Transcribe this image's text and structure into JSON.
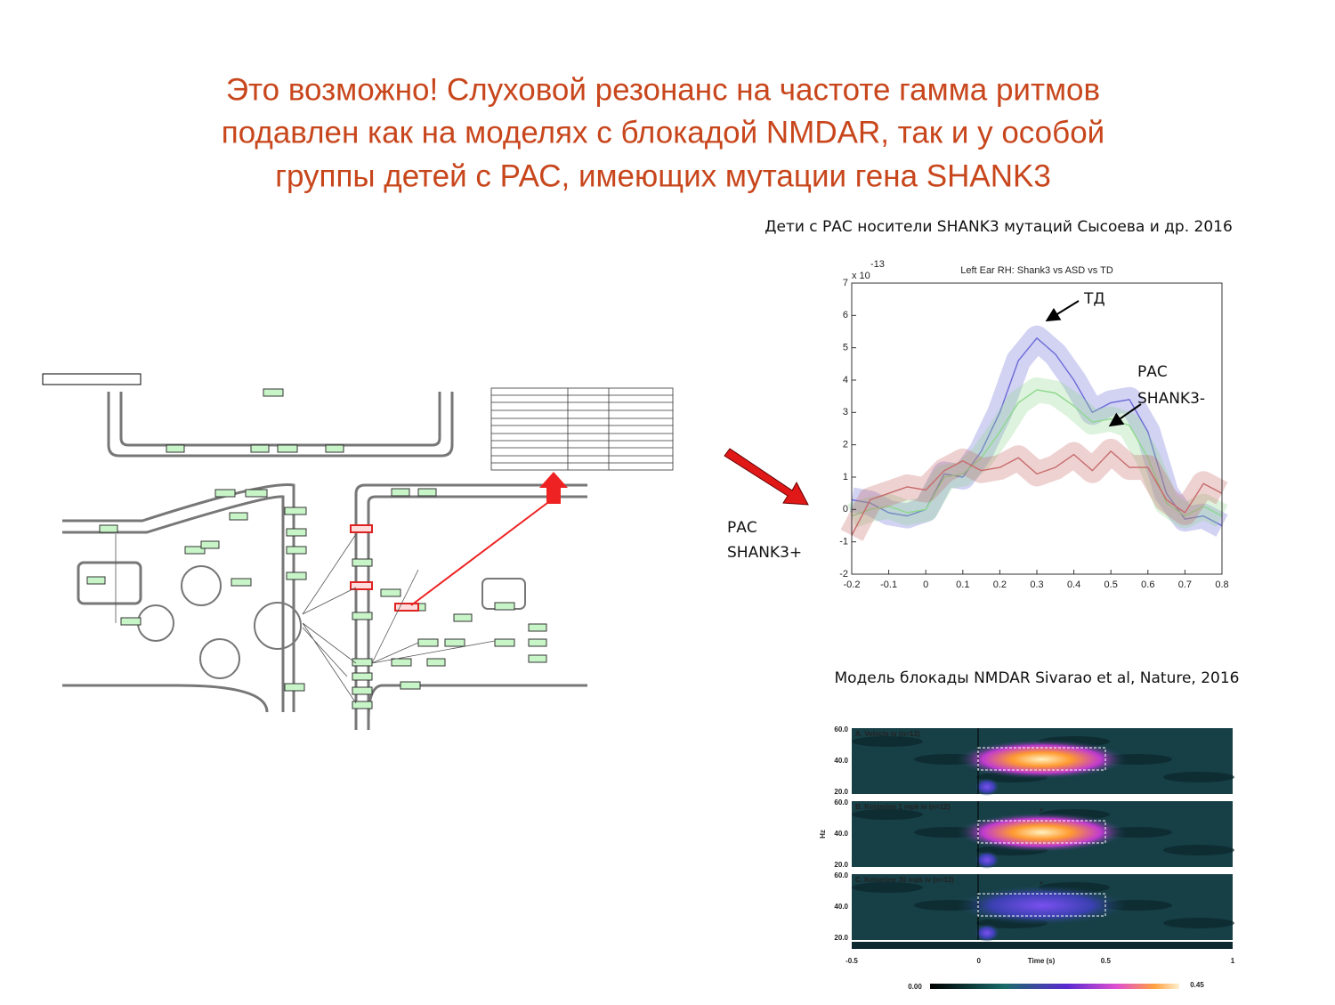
{
  "title": [
    "Это возможно! Слуховой резонанс на частоте гамма ритмов",
    "подавлен как на моделях с блокадой NMDAR, так и у особой",
    "группы детей с РАС, имеющих мутации гена SHANK3"
  ],
  "caption_top": "Дети с РАС носители SHANK3 мутаций  Сысоева и др. 2016",
  "chart_data": {
    "type": "line",
    "title": "Left Ear RH: Shank3 vs ASD vs TD",
    "y_scale_label": "x 10",
    "y_scale_exponent": "-13",
    "x": [
      -0.2,
      -0.15,
      -0.1,
      -0.05,
      0,
      0.05,
      0.1,
      0.15,
      0.2,
      0.25,
      0.3,
      0.35,
      0.4,
      0.45,
      0.5,
      0.55,
      0.6,
      0.65,
      0.7,
      0.75,
      0.8
    ],
    "series": [
      {
        "color": "#6a6ad8",
        "values": [
          0.3,
          0.2,
          -0.1,
          -0.2,
          0.0,
          1.1,
          1.0,
          1.8,
          3.0,
          4.6,
          5.3,
          4.8,
          4.0,
          3.0,
          3.3,
          3.4,
          2.4,
          0.5,
          -0.3,
          -0.2,
          -0.5
        ]
      },
      {
        "color": "#8fd88f",
        "values": [
          -0.2,
          0.0,
          0.1,
          -0.1,
          0.0,
          1.0,
          1.1,
          1.6,
          2.4,
          3.3,
          3.7,
          3.6,
          3.2,
          2.7,
          2.8,
          2.6,
          1.6,
          0.2,
          -0.2,
          0.1,
          -0.2
        ]
      },
      {
        "color": "#c86a6a",
        "values": [
          -0.8,
          0.3,
          0.5,
          0.7,
          0.6,
          1.2,
          1.5,
          1.2,
          1.3,
          1.6,
          1.1,
          1.3,
          1.7,
          1.2,
          1.8,
          1.3,
          1.3,
          0.3,
          -0.1,
          0.8,
          0.5
        ]
      }
    ],
    "xlim": [
      -0.2,
      0.8
    ],
    "xticks": [
      -0.2,
      -0.1,
      0,
      0.1,
      0.2,
      0.3,
      0.4,
      0.5,
      0.6,
      0.7,
      0.8
    ],
    "ylim": [
      -2,
      7
    ],
    "yticks": [
      -2,
      -1,
      0,
      1,
      2,
      3,
      4,
      5,
      6,
      7
    ],
    "annotations": [
      "ТД",
      "РАС",
      "SHANK3-"
    ]
  },
  "left_label": [
    "РАС",
    "SHANK3+"
  ],
  "caption_bottom": "Модель блокады NMDAR   Sivarao et al, Nature, 2016",
  "spectrogram": {
    "panels": [
      {
        "title": "A. Vehicle iv (n=12)",
        "star": null
      },
      {
        "title": "B. Ketamine 1 mpk iv  (n=12)",
        "star": "*"
      },
      {
        "title": "C. Ketamine 30 mpk iv  (n=12)",
        "star": "*"
      }
    ],
    "yticks": [
      "60.0",
      "40.0",
      "20.0"
    ],
    "ylabel": "Hz",
    "xticks": [
      "-0.5",
      "0",
      "0.5",
      "1"
    ],
    "xlabel": "Time (s)",
    "colorbar": [
      "0.00",
      "0.45"
    ]
  }
}
